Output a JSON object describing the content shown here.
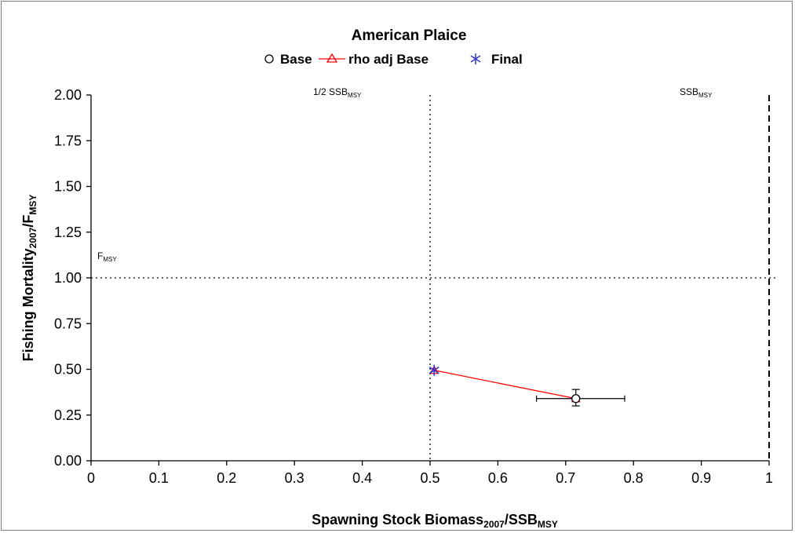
{
  "chart_data": {
    "type": "scatter",
    "title": "American Plaice",
    "xlabel": {
      "main": "Spawning Stock Biomass",
      "sub1": "2007",
      "mid": "/SSB",
      "sub2": "MSY"
    },
    "ylabel": {
      "main": "Fishing Mortality",
      "sub1": "2007",
      "mid": "/F",
      "sub2": "MSY"
    },
    "xlim": [
      0,
      1
    ],
    "ylim": [
      0,
      2
    ],
    "x_ticks": [
      "0",
      "0.1",
      "0.2",
      "0.3",
      "0.4",
      "0.5",
      "0.6",
      "0.7",
      "0.8",
      "0.9",
      "1"
    ],
    "y_ticks": [
      "0.00",
      "0.25",
      "0.50",
      "0.75",
      "1.00",
      "1.25",
      "1.50",
      "1.75",
      "2.00"
    ],
    "legend": {
      "position": "top-center"
    },
    "series": [
      {
        "name": "Base",
        "marker": "circle",
        "color": "#000000",
        "points": [
          {
            "x": 0.715,
            "y": 0.34,
            "x_err": [
              0.657,
              0.787
            ],
            "y_err": [
              0.3,
              0.39
            ]
          }
        ]
      },
      {
        "name": "rho adj Base",
        "marker": "triangle",
        "color": "#ff0000",
        "line": true,
        "points": [
          {
            "x": 0.715,
            "y": 0.34
          },
          {
            "x": 0.506,
            "y": 0.495
          }
        ]
      },
      {
        "name": "Final",
        "marker": "star",
        "color": "#3333cc",
        "points": [
          {
            "x": 0.506,
            "y": 0.495
          }
        ]
      }
    ],
    "reference_lines": [
      {
        "axis": "x",
        "value": 0.5,
        "style": "dotted",
        "label": {
          "main": "1/2 SSB",
          "sub": "MSY"
        }
      },
      {
        "axis": "x",
        "value": 1.0,
        "style": "dashed",
        "label": {
          "main": "SSB",
          "sub": "MSY"
        }
      },
      {
        "axis": "y",
        "value": 1.0,
        "style": "dotted",
        "label": {
          "main": "F",
          "sub": "MSY"
        }
      }
    ],
    "grid": false
  }
}
